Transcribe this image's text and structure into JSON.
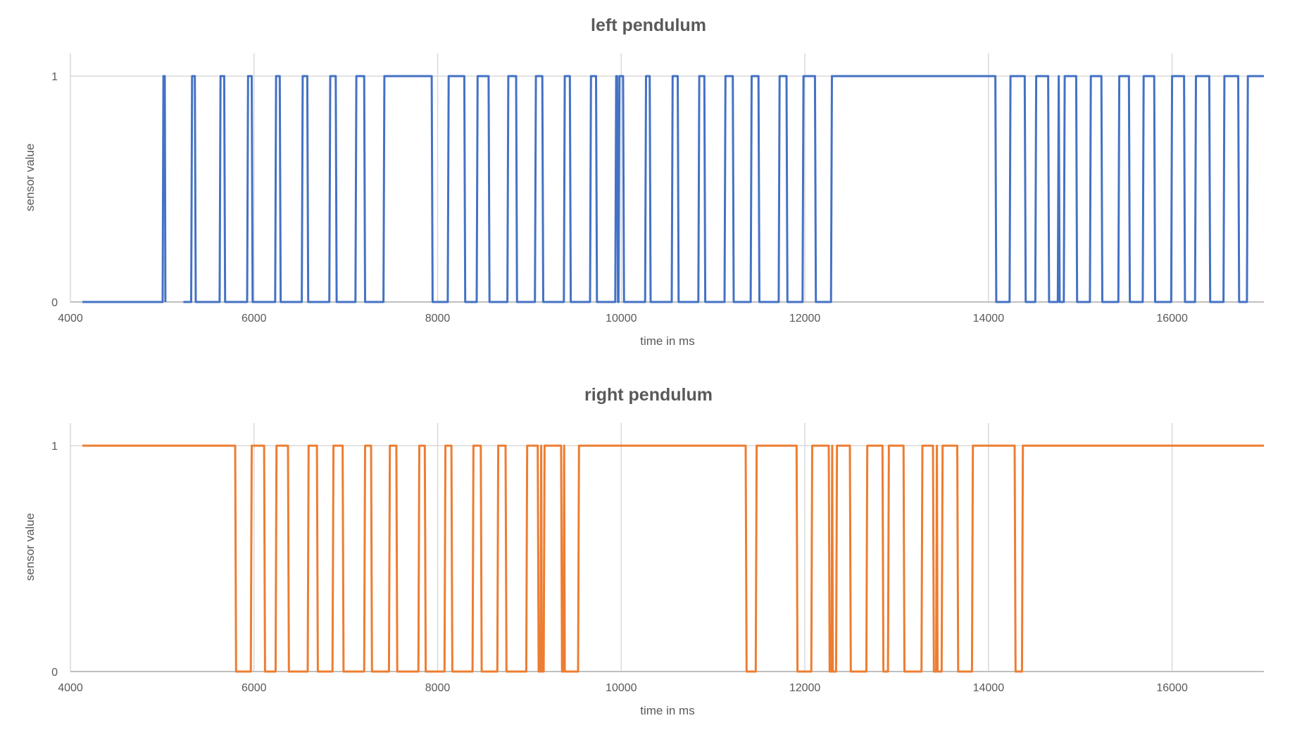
{
  "chart_data": [
    {
      "type": "line",
      "title": "left pendulum",
      "xlabel": "time in ms",
      "ylabel": "sensor value",
      "xlim": [
        4000,
        17000
      ],
      "ylim": [
        0,
        1.1
      ],
      "x_ticks": [
        "4000",
        "6000",
        "8000",
        "10000",
        "12000",
        "14000",
        "16000"
      ],
      "y_ticks": [
        "0",
        "1"
      ],
      "grid": true,
      "legend": "none",
      "color": "#4472C4",
      "points": [
        [
          4130,
          0
        ],
        [
          5005,
          0
        ],
        [
          5013,
          1
        ],
        [
          5028,
          1
        ],
        [
          5035,
          0
        ],
        null,
        [
          5230,
          0
        ],
        [
          5315,
          0
        ],
        [
          5325,
          1
        ],
        [
          5355,
          1
        ],
        [
          5365,
          0
        ],
        [
          5625,
          0
        ],
        [
          5635,
          1
        ],
        [
          5675,
          1
        ],
        [
          5685,
          0
        ],
        [
          5925,
          0
        ],
        [
          5935,
          1
        ],
        [
          5975,
          1
        ],
        [
          5985,
          0
        ],
        [
          6230,
          0
        ],
        [
          6240,
          1
        ],
        [
          6280,
          1
        ],
        [
          6290,
          0
        ],
        [
          6520,
          0
        ],
        [
          6530,
          1
        ],
        [
          6580,
          1
        ],
        [
          6590,
          0
        ],
        [
          6820,
          0
        ],
        [
          6830,
          1
        ],
        [
          6890,
          1
        ],
        [
          6900,
          0
        ],
        [
          7105,
          0
        ],
        [
          7115,
          1
        ],
        [
          7200,
          1
        ],
        [
          7210,
          0
        ],
        [
          7410,
          0
        ],
        [
          7420,
          1
        ],
        [
          7935,
          1
        ],
        [
          7945,
          0
        ],
        [
          8110,
          0
        ],
        [
          8120,
          1
        ],
        [
          8290,
          1
        ],
        [
          8300,
          0
        ],
        [
          8425,
          0
        ],
        [
          8435,
          1
        ],
        [
          8555,
          1
        ],
        [
          8565,
          0
        ],
        [
          8760,
          0
        ],
        [
          8770,
          1
        ],
        [
          8855,
          1
        ],
        [
          8865,
          0
        ],
        [
          9060,
          0
        ],
        [
          9070,
          1
        ],
        [
          9140,
          1
        ],
        [
          9150,
          0
        ],
        [
          9375,
          0
        ],
        [
          9385,
          1
        ],
        [
          9440,
          1
        ],
        [
          9450,
          0
        ],
        [
          9660,
          0
        ],
        [
          9670,
          1
        ],
        [
          9725,
          1
        ],
        [
          9735,
          0
        ],
        [
          9935,
          0
        ],
        [
          9945,
          1
        ],
        [
          9955,
          1
        ],
        [
          9965,
          0
        ],
        [
          9970,
          0
        ],
        [
          9980,
          1
        ],
        [
          10020,
          1
        ],
        [
          10030,
          0
        ],
        [
          10260,
          0
        ],
        [
          10270,
          1
        ],
        [
          10310,
          1
        ],
        [
          10320,
          0
        ],
        [
          10550,
          0
        ],
        [
          10560,
          1
        ],
        [
          10615,
          1
        ],
        [
          10625,
          0
        ],
        [
          10840,
          0
        ],
        [
          10850,
          1
        ],
        [
          10905,
          1
        ],
        [
          10915,
          0
        ],
        [
          11125,
          0
        ],
        [
          11135,
          1
        ],
        [
          11215,
          1
        ],
        [
          11225,
          0
        ],
        [
          11410,
          0
        ],
        [
          11420,
          1
        ],
        [
          11495,
          1
        ],
        [
          11505,
          0
        ],
        [
          11715,
          0
        ],
        [
          11725,
          1
        ],
        [
          11800,
          1
        ],
        [
          11810,
          0
        ],
        [
          11975,
          0
        ],
        [
          11985,
          1
        ],
        [
          12110,
          1
        ],
        [
          12120,
          0
        ],
        [
          12285,
          0
        ],
        [
          12295,
          1
        ],
        [
          14075,
          1
        ],
        [
          14085,
          0
        ],
        [
          14230,
          0
        ],
        [
          14240,
          1
        ],
        [
          14395,
          1
        ],
        [
          14405,
          0
        ],
        [
          14510,
          0
        ],
        [
          14520,
          1
        ],
        [
          14650,
          1
        ],
        [
          14660,
          0
        ],
        [
          14755,
          0
        ],
        [
          14765,
          1
        ],
        [
          14775,
          0
        ],
        [
          14820,
          0
        ],
        [
          14830,
          1
        ],
        [
          14955,
          1
        ],
        [
          14965,
          0
        ],
        [
          15105,
          0
        ],
        [
          15115,
          1
        ],
        [
          15230,
          1
        ],
        [
          15240,
          0
        ],
        [
          15415,
          0
        ],
        [
          15425,
          1
        ],
        [
          15530,
          1
        ],
        [
          15540,
          0
        ],
        [
          15680,
          0
        ],
        [
          15690,
          1
        ],
        [
          15805,
          1
        ],
        [
          15815,
          0
        ],
        [
          15990,
          0
        ],
        [
          16000,
          1
        ],
        [
          16130,
          1
        ],
        [
          16140,
          0
        ],
        [
          16250,
          0
        ],
        [
          16260,
          1
        ],
        [
          16405,
          1
        ],
        [
          16415,
          0
        ],
        [
          16560,
          0
        ],
        [
          16570,
          1
        ],
        [
          16720,
          1
        ],
        [
          16730,
          0
        ],
        [
          16815,
          0
        ],
        [
          16825,
          1
        ],
        [
          17000,
          1
        ]
      ]
    },
    {
      "type": "line",
      "title": "right pendulum",
      "xlabel": "time in ms",
      "ylabel": "sensor value",
      "xlim": [
        4000,
        17000
      ],
      "ylim": [
        0,
        1.1
      ],
      "x_ticks": [
        "4000",
        "6000",
        "8000",
        "10000",
        "12000",
        "14000",
        "16000"
      ],
      "y_ticks": [
        "0",
        "1"
      ],
      "grid": true,
      "legend": "none",
      "color": "#ED7D31",
      "points": [
        [
          4130,
          1
        ],
        [
          5795,
          1
        ],
        [
          5805,
          0
        ],
        [
          5965,
          0
        ],
        [
          5975,
          1
        ],
        [
          6110,
          1
        ],
        [
          6120,
          0
        ],
        [
          6235,
          0
        ],
        [
          6245,
          1
        ],
        [
          6370,
          1
        ],
        [
          6380,
          0
        ],
        [
          6585,
          0
        ],
        [
          6595,
          1
        ],
        [
          6685,
          1
        ],
        [
          6695,
          0
        ],
        [
          6855,
          0
        ],
        [
          6865,
          1
        ],
        [
          6965,
          1
        ],
        [
          6975,
          0
        ],
        [
          7200,
          0
        ],
        [
          7210,
          1
        ],
        [
          7275,
          1
        ],
        [
          7285,
          0
        ],
        [
          7470,
          0
        ],
        [
          7480,
          1
        ],
        [
          7550,
          1
        ],
        [
          7560,
          0
        ],
        [
          7790,
          0
        ],
        [
          7800,
          1
        ],
        [
          7860,
          1
        ],
        [
          7870,
          0
        ],
        [
          8075,
          0
        ],
        [
          8085,
          1
        ],
        [
          8150,
          1
        ],
        [
          8160,
          0
        ],
        [
          8380,
          0
        ],
        [
          8390,
          1
        ],
        [
          8470,
          1
        ],
        [
          8480,
          0
        ],
        [
          8650,
          0
        ],
        [
          8660,
          1
        ],
        [
          8740,
          1
        ],
        [
          8750,
          0
        ],
        [
          8965,
          0
        ],
        [
          8975,
          1
        ],
        [
          9090,
          1
        ],
        [
          9100,
          0
        ],
        [
          9120,
          0
        ],
        [
          9128,
          1
        ],
        [
          9135,
          0
        ],
        [
          9155,
          0
        ],
        [
          9165,
          1
        ],
        [
          9345,
          1
        ],
        [
          9355,
          0
        ],
        [
          9370,
          0
        ],
        [
          9378,
          1
        ],
        [
          9385,
          0
        ],
        [
          9530,
          0
        ],
        [
          9540,
          1
        ],
        [
          11355,
          1
        ],
        [
          11365,
          0
        ],
        [
          11465,
          0
        ],
        [
          11475,
          1
        ],
        [
          11910,
          1
        ],
        [
          11920,
          0
        ],
        [
          12070,
          0
        ],
        [
          12080,
          1
        ],
        [
          12260,
          1
        ],
        [
          12270,
          0
        ],
        [
          12290,
          0
        ],
        [
          12298,
          1
        ],
        [
          12305,
          0
        ],
        [
          12340,
          0
        ],
        [
          12350,
          1
        ],
        [
          12490,
          1
        ],
        [
          12500,
          0
        ],
        [
          12670,
          0
        ],
        [
          12680,
          1
        ],
        [
          12845,
          1
        ],
        [
          12855,
          0
        ],
        [
          12905,
          0
        ],
        [
          12915,
          1
        ],
        [
          13075,
          1
        ],
        [
          13085,
          0
        ],
        [
          13270,
          0
        ],
        [
          13280,
          1
        ],
        [
          13395,
          1
        ],
        [
          13405,
          0
        ],
        [
          13430,
          0
        ],
        [
          13438,
          1
        ],
        [
          13445,
          0
        ],
        [
          13490,
          0
        ],
        [
          13500,
          1
        ],
        [
          13660,
          1
        ],
        [
          13670,
          0
        ],
        [
          13820,
          0
        ],
        [
          13830,
          1
        ],
        [
          14285,
          1
        ],
        [
          14295,
          0
        ],
        [
          14365,
          0
        ],
        [
          14375,
          1
        ],
        [
          17000,
          1
        ]
      ]
    }
  ]
}
